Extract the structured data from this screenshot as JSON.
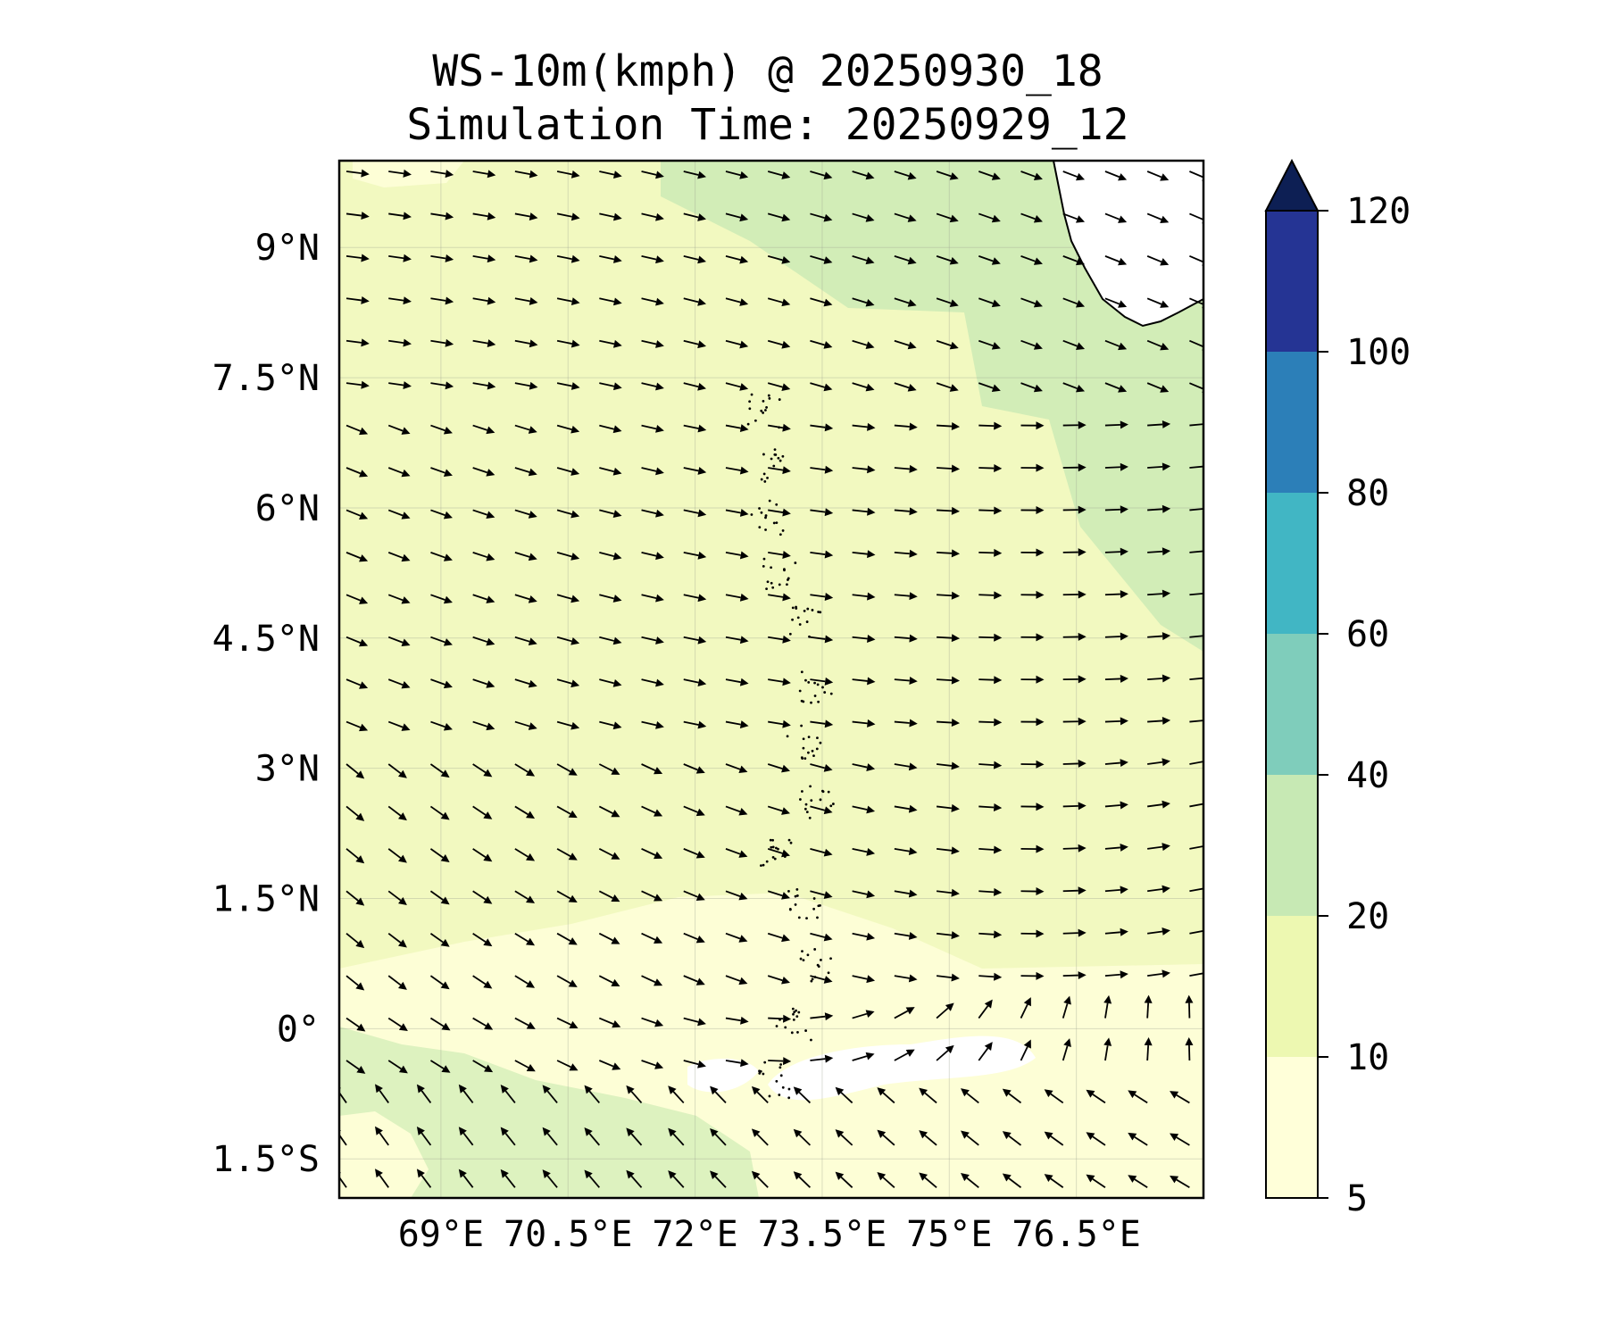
{
  "title": "WS-10m(kmph) @ 20250930_18",
  "subtitle": "Simulation Time: 20250929_12",
  "map": {
    "lon_range": [
      67.8,
      78.0
    ],
    "lat_range": [
      -1.95,
      10.0
    ],
    "lat_ticks": [
      {
        "value": 9.0,
        "label": "9°N"
      },
      {
        "value": 7.5,
        "label": "7.5°N"
      },
      {
        "value": 6.0,
        "label": "6°N"
      },
      {
        "value": 4.5,
        "label": "4.5°N"
      },
      {
        "value": 3.0,
        "label": "3°N"
      },
      {
        "value": 1.5,
        "label": "1.5°N"
      },
      {
        "value": 0.0,
        "label": "0°"
      },
      {
        "value": -1.5,
        "label": "1.5°S"
      }
    ],
    "lon_ticks": [
      {
        "value": 69.0,
        "label": "69°E"
      },
      {
        "value": 70.5,
        "label": "70.5°E"
      },
      {
        "value": 72.0,
        "label": "72°E"
      },
      {
        "value": 73.5,
        "label": "73.5°E"
      },
      {
        "value": 75.0,
        "label": "75°E"
      },
      {
        "value": 76.5,
        "label": "76.5°E"
      }
    ],
    "colors": {
      "background": "#f2f9c0",
      "band_lt10": "#fdfed6",
      "band_20_40": "#d2edb7",
      "calm": "#ffffff",
      "land": "#ffffff",
      "arrow": "#000000"
    }
  },
  "colorbar": {
    "levels": [
      5,
      10,
      20,
      40,
      60,
      80,
      100,
      120
    ],
    "colors": [
      "#ffffd9",
      "#edf8b1",
      "#c7e9b4",
      "#7fcdbb",
      "#41b6c4",
      "#2c7fb8",
      "#253494"
    ],
    "extend_color": "#0d1f54",
    "extend": "max",
    "tick_labels": [
      "5",
      "10",
      "20",
      "40",
      "60",
      "80",
      "100",
      "120"
    ]
  }
}
